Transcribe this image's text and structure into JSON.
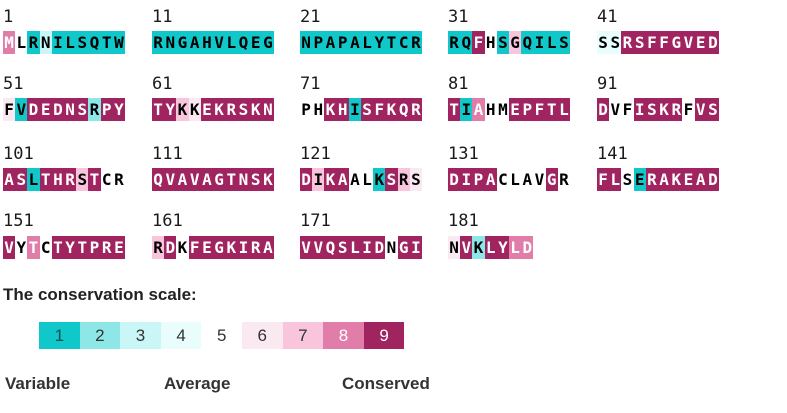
{
  "colors": {
    "1": "#10c7c9",
    "2": "#8de7e7",
    "3": "#cbf6f7",
    "4": "#eafdfd",
    "5": "#ffffff",
    "6": "#fbe9f2",
    "7": "#f8c5dc",
    "8": "#e07ea9",
    "9": "#a0245f"
  },
  "blocks": [
    {
      "start": "1",
      "seq": "MLRNILSQTW",
      "grades": "8513111111"
    },
    {
      "start": "11",
      "seq": "RNGAHVLQEG",
      "grades": "1111111111"
    },
    {
      "start": "21",
      "seq": "NPAPALYTCR",
      "grades": "1111111111"
    },
    {
      "start": "31",
      "seq": "RQFHSGQILS",
      "grades": "1195171111"
    },
    {
      "start": "41",
      "seq": "SSRSFFGVED",
      "grades": "4499999999"
    },
    {
      "start": "51",
      "seq": "FVDEDNSRPY",
      "grades": "6199999299"
    },
    {
      "start": "61",
      "seq": "TYKKEKRSKN",
      "grades": "9976999999"
    },
    {
      "start": "71",
      "seq": "PHKHISFKQR",
      "grades": "5599199999"
    },
    {
      "start": "81",
      "seq": "TIAHMEPFTL",
      "grades": "9185599999"
    },
    {
      "start": "91",
      "seq": "DVFISKRFVS",
      "grades": "9559999599"
    },
    {
      "start": "101",
      "seq": "ASLTHRSTCR",
      "grades": "9919997955"
    },
    {
      "start": "111",
      "seq": "QVAVAGTNSK",
      "grades": "9999999999"
    },
    {
      "start": "121",
      "seq": "DIKAALKSRS",
      "grades": "9799551976"
    },
    {
      "start": "131",
      "seq": "DIPACLAVGR",
      "grades": "9999555595"
    },
    {
      "start": "141",
      "seq": "FLSERAKEAD",
      "grades": "9951999999"
    },
    {
      "start": "151",
      "seq": "VYTCTYTPRE",
      "grades": "9585999999"
    },
    {
      "start": "161",
      "seq": "RDKFEGKIRA",
      "grades": "7959999999"
    },
    {
      "start": "171",
      "seq": "VVQSLIDNGI",
      "grades": "9999999599"
    },
    {
      "start": "181",
      "seq": "NVKLYLD",
      "grades": "6929988"
    }
  ],
  "scale": {
    "title": "The conservation scale:",
    "grades": [
      "1",
      "2",
      "3",
      "4",
      "5",
      "6",
      "7",
      "8",
      "9"
    ],
    "labels": {
      "variable": "Variable",
      "average": "Average",
      "conserved": "Conserved"
    }
  }
}
